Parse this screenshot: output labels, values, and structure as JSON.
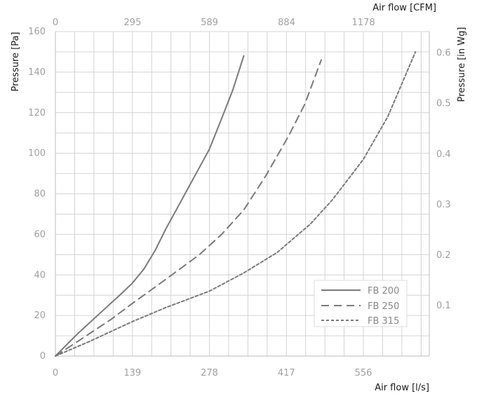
{
  "chart_data": {
    "type": "line",
    "x_axis_bottom": {
      "label": "Air flow [l/s]",
      "ticks": [
        0,
        139,
        278,
        417,
        556
      ],
      "range": [
        0,
        675
      ]
    },
    "x_axis_top": {
      "label": "Air flow [CFM]",
      "ticks": [
        0,
        295,
        589,
        884,
        1178
      ],
      "range": [
        0,
        1430
      ]
    },
    "y_axis_left": {
      "label": "Pressure [Pa]",
      "ticks": [
        0,
        20,
        40,
        60,
        80,
        100,
        120,
        140,
        160
      ],
      "range": [
        0,
        160
      ]
    },
    "y_axis_right": {
      "label": "Pressure [in Wg]",
      "ticks": [
        "0.1",
        "0.2",
        "0.3",
        "0.4",
        "0.5",
        "0.6"
      ],
      "tick_values_pa": [
        24.9,
        49.8,
        74.7,
        99.6,
        124.5,
        149.4
      ]
    },
    "grid": true,
    "legend_position": "bottom-right",
    "series": [
      {
        "name": "FB 200",
        "color": "#7a7a7a",
        "style": "solid",
        "x": [
          0,
          40,
          80,
          120,
          139,
          160,
          180,
          200,
          220,
          250,
          278,
          300,
          320,
          340
        ],
        "y": [
          0,
          11,
          21,
          31,
          36,
          43,
          52,
          63,
          73,
          88,
          102,
          117,
          131,
          148
        ]
      },
      {
        "name": "FB 250",
        "color": "#7a7a7a",
        "style": "dashed",
        "x": [
          0,
          50,
          100,
          139,
          180,
          220,
          260,
          300,
          340,
          380,
          420,
          450,
          480
        ],
        "y": [
          0,
          9,
          18,
          26,
          34,
          42,
          50,
          60,
          72,
          89,
          108,
          124,
          146
        ]
      },
      {
        "name": "FB 315",
        "color": "#7a7a7a",
        "style": "dotted",
        "x": [
          0,
          60,
          139,
          200,
          278,
          340,
          400,
          460,
          500,
          556,
          600,
          650
        ],
        "y": [
          0,
          7,
          17,
          24,
          32,
          41,
          51,
          65,
          77,
          97,
          118,
          150
        ]
      }
    ]
  }
}
